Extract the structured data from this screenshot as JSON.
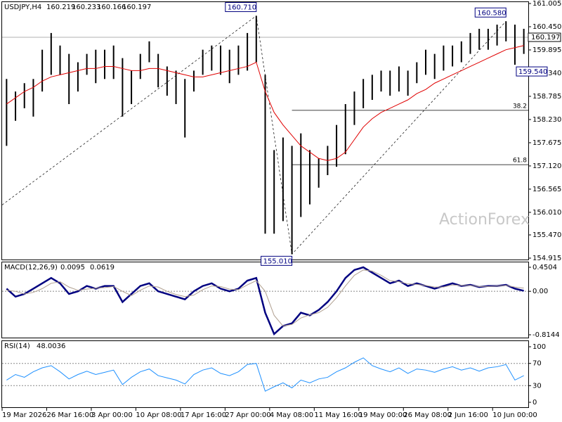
{
  "chart_data": [
    {
      "type": "hlbar",
      "title": "USDJPY,H4",
      "ohlc": [
        160.219,
        160.233,
        160.166,
        160.197
      ],
      "categories": [
        "19 Mar 2026",
        null,
        null,
        null,
        null,
        "26 Mar 16:00",
        null,
        null,
        null,
        null,
        "3 Apr 00:00",
        null,
        null,
        null,
        null,
        "10 Apr 08:00",
        null,
        null,
        null,
        null,
        "17 Apr 16:00",
        null,
        null,
        null,
        null,
        "27 Apr 00:00",
        null,
        null,
        null,
        null,
        "4 May 08:00",
        null,
        null,
        null,
        null,
        "11 May 16:00",
        null,
        null,
        null,
        null,
        "19 May 00:00",
        null,
        null,
        null,
        null,
        "26 May 08:00",
        null,
        null,
        null,
        null,
        "2 Jun 16:00",
        null,
        null,
        null,
        null,
        "10 Jun 00:00",
        null,
        null,
        null
      ],
      "high": [
        159.2,
        158.9,
        159.1,
        159.2,
        159.9,
        160.3,
        160.0,
        159.8,
        159.6,
        159.8,
        159.9,
        159.9,
        160.0,
        159.7,
        159.4,
        159.8,
        160.1,
        159.8,
        159.5,
        159.4,
        159.2,
        159.4,
        159.9,
        160.0,
        160.0,
        159.9,
        160.0,
        160.3,
        160.71,
        159.3,
        157.5,
        157.8,
        157.6,
        157.9,
        157.5,
        157.3,
        157.6,
        158.1,
        158.6,
        158.9,
        159.2,
        159.3,
        159.4,
        159.4,
        159.5,
        159.4,
        159.6,
        159.9,
        159.8,
        160.0,
        160.0,
        160.1,
        160.3,
        160.4,
        160.4,
        160.5,
        160.58,
        160.5,
        160.4
      ],
      "low": [
        157.6,
        158.2,
        158.5,
        158.3,
        158.9,
        159.3,
        159.3,
        158.6,
        158.9,
        159.3,
        159.1,
        159.2,
        159.2,
        158.3,
        158.6,
        159.2,
        159.6,
        159.0,
        158.8,
        158.6,
        157.8,
        158.9,
        159.3,
        159.4,
        159.3,
        159.1,
        159.3,
        159.4,
        159.6,
        155.5,
        155.5,
        155.8,
        155.01,
        155.9,
        156.2,
        156.6,
        156.9,
        157.1,
        157.4,
        158.1,
        158.5,
        158.7,
        158.9,
        158.8,
        158.9,
        158.8,
        159.1,
        159.3,
        159.2,
        159.4,
        159.5,
        159.6,
        159.8,
        159.9,
        159.9,
        160.0,
        160.1,
        159.54,
        159.8
      ],
      "color": "#000000",
      "ma": {
        "color": "#e00000",
        "values": [
          158.6,
          158.75,
          158.9,
          159.0,
          159.15,
          159.25,
          159.3,
          159.35,
          159.4,
          159.45,
          159.45,
          159.5,
          159.5,
          159.45,
          159.4,
          159.4,
          159.45,
          159.45,
          159.4,
          159.35,
          159.3,
          159.25,
          159.25,
          159.3,
          159.35,
          159.4,
          159.45,
          159.5,
          159.6,
          158.9,
          158.4,
          158.1,
          157.85,
          157.6,
          157.45,
          157.3,
          157.25,
          157.3,
          157.45,
          157.75,
          158.05,
          158.25,
          158.4,
          158.5,
          158.6,
          158.7,
          158.85,
          158.95,
          159.1,
          159.2,
          159.3,
          159.4,
          159.5,
          159.6,
          159.7,
          159.8,
          159.9,
          159.95,
          160.0
        ]
      },
      "ylim": [
        154.915,
        161.005
      ],
      "yticks": [
        161.005,
        {
          "value": 160.45,
          "label": "160.450"
        },
        159.895,
        {
          "value": 159.34,
          "label": "159.340"
        },
        158.785,
        {
          "value": 158.23,
          "label": "158.230"
        },
        157.675,
        {
          "value": 157.12,
          "label": "157.120"
        },
        156.565,
        {
          "value": 156.01,
          "label": "156.010"
        },
        {
          "value": 155.47,
          "label": "155.470"
        },
        154.915
      ],
      "last_price": 160.197,
      "annotations": [
        {
          "x": 28,
          "value": 160.71,
          "label": "160.710"
        },
        {
          "x": 32,
          "value": 155.01,
          "label": "155.010"
        },
        {
          "x": 56,
          "value": 160.58,
          "label": "160.580"
        },
        {
          "x": 57,
          "value": 159.54,
          "label": "159.540"
        }
      ],
      "fib": [
        {
          "ratio": 38.2,
          "value": 158.45
        },
        {
          "ratio": 61.8,
          "value": 157.15
        }
      ],
      "watermark": "ActionForex"
    },
    {
      "type": "line",
      "title": "MACD(12,26,9)",
      "readout": [
        0.0095,
        0.0619
      ],
      "series": [
        {
          "color": "#000080",
          "values": [
            0.05,
            -0.1,
            -0.05,
            0.05,
            0.15,
            0.25,
            0.15,
            -0.05,
            0.0,
            0.1,
            0.05,
            0.1,
            0.1,
            -0.2,
            -0.05,
            0.1,
            0.15,
            0.0,
            -0.05,
            -0.1,
            -0.15,
            0.0,
            0.1,
            0.15,
            0.05,
            0.0,
            0.05,
            0.2,
            0.25,
            -0.4,
            -0.8,
            -0.65,
            -0.6,
            -0.4,
            -0.45,
            -0.35,
            -0.2,
            0.0,
            0.25,
            0.4,
            0.45,
            0.35,
            0.25,
            0.15,
            0.2,
            0.1,
            0.15,
            0.1,
            0.05,
            0.1,
            0.15,
            0.1,
            0.12,
            0.08,
            0.1,
            0.1,
            0.12,
            0.05,
            0.01
          ]
        },
        {
          "color": "#b0a090",
          "values": [
            0.02,
            0.0,
            -0.05,
            -0.02,
            0.05,
            0.15,
            0.18,
            0.08,
            0.02,
            0.04,
            0.06,
            0.07,
            0.09,
            0.0,
            -0.08,
            0.02,
            0.1,
            0.08,
            0.0,
            -0.06,
            -0.1,
            -0.07,
            0.03,
            0.1,
            0.09,
            0.04,
            0.03,
            0.12,
            0.2,
            0.0,
            -0.45,
            -0.65,
            -0.62,
            -0.5,
            -0.44,
            -0.4,
            -0.3,
            -0.12,
            0.1,
            0.3,
            0.4,
            0.38,
            0.3,
            0.2,
            0.18,
            0.14,
            0.13,
            0.11,
            0.08,
            0.08,
            0.12,
            0.11,
            0.11,
            0.09,
            0.09,
            0.1,
            0.11,
            0.08,
            0.06
          ]
        }
      ],
      "ylim": [
        -0.8144,
        0.4504
      ],
      "yticks": [
        0.4504,
        {
          "value": 0,
          "label": "0.00"
        },
        -0.8144
      ]
    },
    {
      "type": "line",
      "title": "RSI(14)",
      "readout": 48.0036,
      "series": [
        {
          "color": "#1e90ff",
          "values": [
            40,
            50,
            45,
            55,
            62,
            66,
            55,
            42,
            50,
            56,
            50,
            54,
            58,
            32,
            45,
            55,
            60,
            48,
            44,
            40,
            33,
            50,
            58,
            62,
            52,
            48,
            55,
            68,
            70,
            20,
            28,
            35,
            26,
            40,
            35,
            42,
            45,
            55,
            62,
            72,
            80,
            66,
            60,
            55,
            62,
            52,
            60,
            58,
            54,
            60,
            64,
            58,
            62,
            56,
            62,
            64,
            68,
            40,
            48
          ]
        }
      ],
      "ylim": [
        0,
        100
      ],
      "yticks": [
        100,
        70,
        30,
        0
      ]
    }
  ]
}
